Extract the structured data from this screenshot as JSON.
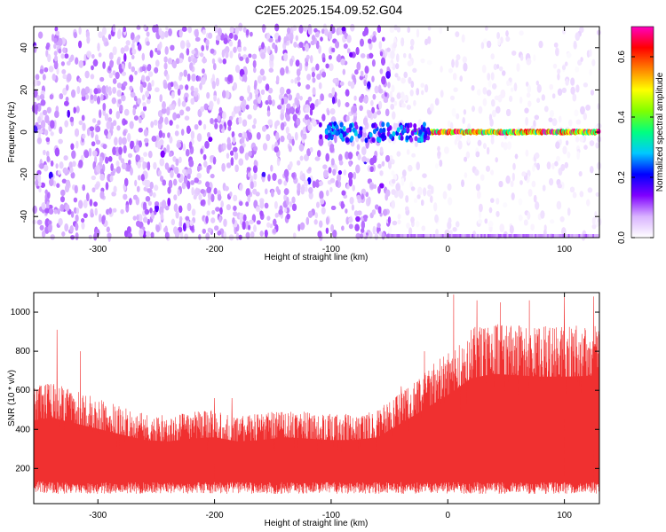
{
  "title": "C2E5.2025.154.09.52.G04",
  "chart_data": [
    {
      "type": "heatmap",
      "xlabel": "Height of straight line (km)",
      "ylabel": "Frequency (Hz)",
      "xlim": [
        -355,
        130
      ],
      "ylim": [
        -50,
        50
      ],
      "xticks": [
        -300,
        -200,
        -100,
        0,
        100
      ],
      "yticks": [
        -40,
        -20,
        0,
        20,
        40
      ],
      "colorbar": {
        "label": "Normalized spectral amplitude",
        "range": [
          0.0,
          0.7
        ],
        "ticks": [
          0.0,
          0.2,
          0.4,
          0.6
        ],
        "colormap": [
          "#ffffff",
          "#d9b3ff",
          "#7f00ff",
          "#0000ff",
          "#00c8ff",
          "#00ff80",
          "#80ff00",
          "#ffff00",
          "#ff8000",
          "#ff0000",
          "#ff00c0"
        ]
      },
      "features": [
        {
          "description": "dense broadband speckle across all frequencies",
          "x_range": [
            -355,
            -50
          ],
          "typical_amplitude": 0.07
        },
        {
          "description": "sparse light speckle",
          "x_range": [
            -50,
            130
          ],
          "typical_amplitude": 0.02
        },
        {
          "description": "narrow line at 0 Hz",
          "x_range": [
            -30,
            130
          ],
          "frequency": 0,
          "amplitude_range": [
            0.3,
            0.7
          ]
        }
      ]
    },
    {
      "type": "line",
      "series": [
        {
          "color": "#f03030"
        }
      ],
      "xlabel": "Height of straight line (km)",
      "ylabel": "SNR (10 * v/v)",
      "xlim": [
        -355,
        130
      ],
      "ylim": [
        20,
        1100
      ],
      "xticks": [
        -300,
        -200,
        -100,
        0,
        100
      ],
      "yticks": [
        200,
        400,
        600,
        800,
        1000
      ],
      "envelope": {
        "x": [
          -355,
          -340,
          -320,
          -300,
          -280,
          -260,
          -240,
          -220,
          -200,
          -180,
          -160,
          -140,
          -120,
          -100,
          -80,
          -60,
          -40,
          -20,
          0,
          20,
          40,
          60,
          80,
          100,
          130
        ],
        "lower": [
          80,
          70,
          70,
          70,
          70,
          70,
          70,
          70,
          70,
          70,
          70,
          70,
          70,
          70,
          70,
          70,
          70,
          70,
          70,
          70,
          70,
          70,
          70,
          70,
          70
        ],
        "upper": [
          620,
          640,
          600,
          560,
          520,
          480,
          470,
          490,
          500,
          470,
          480,
          500,
          490,
          480,
          480,
          500,
          600,
          700,
          800,
          920,
          950,
          940,
          930,
          930,
          940
        ],
        "peaks": [
          [
            -355,
            700
          ],
          [
            -335,
            910
          ],
          [
            -315,
            800
          ],
          [
            -200,
            560
          ],
          [
            -185,
            560
          ],
          [
            -40,
            620
          ],
          [
            -20,
            800
          ],
          [
            5,
            1090
          ],
          [
            25,
            1060
          ],
          [
            45,
            1050
          ],
          [
            70,
            1060
          ],
          [
            100,
            1080
          ],
          [
            125,
            1080
          ]
        ]
      }
    }
  ]
}
